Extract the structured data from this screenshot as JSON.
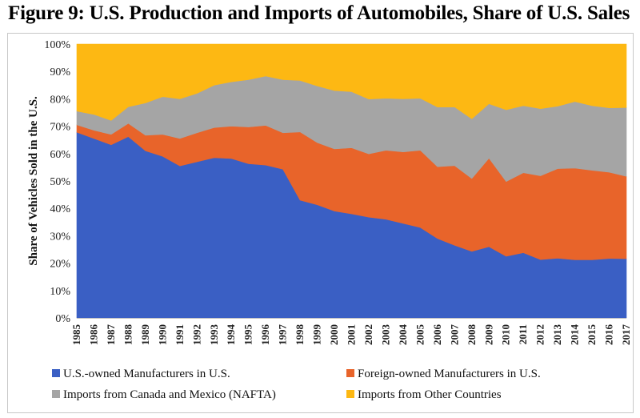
{
  "page_title": "Figure 9:  U.S. Production and Imports of Automobiles, Share of U.S. Sales",
  "chart_data": {
    "type": "area",
    "stacked": true,
    "title": "Figure 9:  U.S. Production and Imports of Automobiles, Share of U.S. Sales",
    "xlabel": "",
    "ylabel": "Share of Vehicles Sold in the U.S.",
    "ylim": [
      0,
      100
    ],
    "yticks": [
      "0%",
      "10%",
      "20%",
      "30%",
      "40%",
      "50%",
      "60%",
      "70%",
      "80%",
      "90%",
      "100%"
    ],
    "grid": false,
    "legend_position": "bottom",
    "categories": [
      "1985",
      "1986",
      "1987",
      "1988",
      "1989",
      "1990",
      "1991",
      "1992",
      "1993",
      "1994",
      "1995",
      "1996",
      "1997",
      "1998",
      "1999",
      "2000",
      "2001",
      "2002",
      "2003",
      "2004",
      "2005",
      "2006",
      "2007",
      "2008",
      "2009",
      "2010",
      "2011",
      "2012",
      "2013",
      "2014",
      "2015",
      "2016",
      "2017"
    ],
    "series": [
      {
        "name": "U.S.-owned Manufacturers in U.S.",
        "color": "#3a5fc4",
        "values": [
          67.8,
          65.5,
          63.2,
          66.2,
          61.0,
          59.0,
          55.5,
          57.0,
          58.5,
          58.2,
          56.3,
          55.8,
          54.3,
          43.0,
          41.3,
          39.0,
          38.0,
          36.8,
          36.0,
          34.5,
          33.0,
          29.0,
          26.5,
          24.3,
          26.0,
          22.5,
          23.8,
          21.3,
          21.8,
          21.2,
          21.2,
          21.7,
          21.6
        ]
      },
      {
        "name": "Foreign-owned Manufacturers in U.S.",
        "color": "#e8642a",
        "values": [
          2.7,
          3.0,
          3.8,
          4.8,
          5.7,
          8.0,
          10.0,
          10.6,
          11.0,
          11.8,
          13.4,
          14.5,
          13.3,
          24.9,
          22.7,
          22.7,
          24.1,
          23.1,
          25.2,
          26.1,
          28.2,
          26.2,
          29.1,
          26.6,
          32.3,
          27.3,
          29.2,
          30.6,
          32.7,
          33.5,
          32.7,
          31.5,
          30.1
        ]
      },
      {
        "name": "Imports from Canada and Mexico (NAFTA)",
        "color": "#a5a5a5",
        "values": [
          5.0,
          5.8,
          5.1,
          6.1,
          11.8,
          13.8,
          14.5,
          14.4,
          15.5,
          16.2,
          17.3,
          18.0,
          19.4,
          18.8,
          20.7,
          21.3,
          20.5,
          20.0,
          19.0,
          19.4,
          19.0,
          21.8,
          21.4,
          21.8,
          19.9,
          26.2,
          24.5,
          24.5,
          22.8,
          24.3,
          23.6,
          23.5,
          25.1
        ]
      },
      {
        "name": "Imports from Other Countries",
        "color": "#fdb813",
        "values": [
          24.5,
          25.7,
          27.9,
          22.9,
          21.5,
          19.2,
          20.0,
          18.0,
          15.0,
          13.8,
          13.0,
          11.7,
          13.0,
          13.3,
          15.3,
          17.0,
          17.4,
          20.1,
          19.8,
          20.0,
          19.8,
          23.0,
          23.0,
          27.3,
          21.8,
          24.0,
          22.5,
          23.6,
          22.7,
          21.0,
          22.5,
          23.3,
          23.2
        ]
      }
    ]
  }
}
